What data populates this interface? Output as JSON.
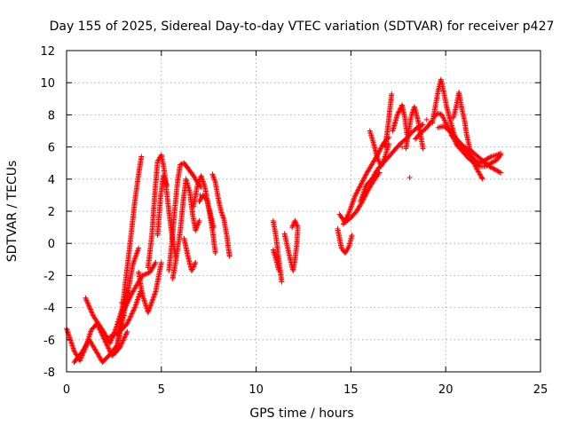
{
  "chart_data": {
    "type": "scatter",
    "title": "Day 155 of 2025, Sidereal Day-to-day VTEC variation (SDTVAR) for receiver p427",
    "xlabel": "GPS time / hours",
    "ylabel": "SDTVAR / TECUs",
    "xlim": [
      0,
      25
    ],
    "ylim": [
      -8,
      12
    ],
    "xticks": [
      "0",
      "5",
      "10",
      "15",
      "20",
      "25"
    ],
    "yticks": [
      "-8",
      "-6",
      "-4",
      "-2",
      "0",
      "2",
      "4",
      "6",
      "8",
      "10",
      "12"
    ],
    "grid": true,
    "marker": "+",
    "series": [
      {
        "name": "SDTVAR",
        "color": "#ff0000",
        "tracks": [
          [
            [
              0.0,
              -5.3
            ],
            [
              0.4,
              -6.7
            ],
            [
              0.7,
              -7.3
            ],
            [
              1.0,
              -6.5
            ],
            [
              1.3,
              -5.4
            ],
            [
              1.6,
              -5.0
            ],
            [
              2.0,
              -6.0
            ],
            [
              2.4,
              -7.0
            ],
            [
              2.8,
              -6.5
            ],
            [
              3.2,
              -5.5
            ]
          ],
          [
            [
              0.4,
              -7.4
            ],
            [
              0.8,
              -6.8
            ],
            [
              1.2,
              -6.0
            ],
            [
              1.6,
              -6.8
            ],
            [
              1.9,
              -7.4
            ],
            [
              2.3,
              -6.9
            ],
            [
              2.7,
              -6.3
            ]
          ],
          [
            [
              1.0,
              -3.4
            ],
            [
              1.4,
              -4.5
            ],
            [
              1.9,
              -5.4
            ],
            [
              2.3,
              -6.2
            ],
            [
              2.6,
              -5.3
            ],
            [
              2.9,
              -4.2
            ],
            [
              3.2,
              -3.3
            ]
          ],
          [
            [
              2.6,
              -6.8
            ],
            [
              2.8,
              -5.5
            ],
            [
              3.0,
              -3.5
            ],
            [
              3.2,
              -1.5
            ],
            [
              3.4,
              0.5
            ],
            [
              3.6,
              2.6
            ],
            [
              3.8,
              4.3
            ],
            [
              3.95,
              5.4
            ]
          ],
          [
            [
              2.3,
              -5.8
            ],
            [
              2.7,
              -5.6
            ],
            [
              3.2,
              -5.0
            ],
            [
              3.6,
              -4.0
            ],
            [
              3.9,
              -3.0
            ]
          ],
          [
            [
              2.7,
              -6.2
            ],
            [
              3.0,
              -4.5
            ],
            [
              3.3,
              -2.6
            ],
            [
              3.5,
              -1.3
            ],
            [
              3.8,
              -0.3
            ]
          ],
          [
            [
              3.0,
              -4.2
            ],
            [
              3.5,
              -3.0
            ],
            [
              4.0,
              -2.0
            ],
            [
              4.4,
              -1.8
            ],
            [
              4.7,
              -1.2
            ]
          ],
          [
            [
              3.8,
              -1.8
            ],
            [
              4.0,
              -3.2
            ],
            [
              4.3,
              -4.3
            ],
            [
              4.7,
              -3.0
            ],
            [
              5.0,
              -1.2
            ]
          ],
          [
            [
              4.3,
              -1.5
            ],
            [
              4.5,
              0.5
            ],
            [
              4.65,
              3.0
            ],
            [
              4.8,
              5.1
            ],
            [
              5.0,
              5.5
            ],
            [
              5.15,
              4.6
            ],
            [
              5.3,
              3.0
            ],
            [
              5.45,
              1.5
            ],
            [
              5.6,
              0.2
            ],
            [
              5.75,
              -0.8
            ]
          ],
          [
            [
              4.8,
              0.5
            ],
            [
              4.95,
              2.8
            ],
            [
              5.1,
              4.2
            ],
            [
              5.3,
              3.6
            ]
          ],
          [
            [
              5.4,
              -1.7
            ],
            [
              5.55,
              0.0
            ],
            [
              5.7,
              2.0
            ],
            [
              5.85,
              3.8
            ],
            [
              6.0,
              4.9
            ],
            [
              6.2,
              5.0
            ],
            [
              6.45,
              4.6
            ],
            [
              6.7,
              4.2
            ],
            [
              6.9,
              3.8
            ],
            [
              7.1,
              3.5
            ]
          ],
          [
            [
              5.6,
              -2.2
            ],
            [
              5.8,
              -0.8
            ],
            [
              6.0,
              0.8
            ],
            [
              6.15,
              2.6
            ],
            [
              6.3,
              4.0
            ],
            [
              6.5,
              3.2
            ],
            [
              6.65,
              1.8
            ],
            [
              6.8,
              0.8
            ],
            [
              7.0,
              1.4
            ]
          ],
          [
            [
              6.2,
              0.3
            ],
            [
              6.4,
              -0.8
            ],
            [
              6.6,
              -1.7
            ],
            [
              6.8,
              -1.2
            ]
          ],
          [
            [
              6.7,
              2.3
            ],
            [
              6.9,
              3.6
            ],
            [
              7.1,
              4.2
            ],
            [
              7.3,
              3.5
            ],
            [
              7.5,
              2.2
            ],
            [
              7.7,
              0.8
            ],
            [
              7.85,
              -0.6
            ]
          ],
          [
            [
              7.0,
              2.6
            ],
            [
              7.2,
              3.0
            ],
            [
              7.4,
              2.7
            ],
            [
              7.6,
              1.8
            ],
            [
              7.75,
              1.0
            ]
          ],
          [
            [
              7.7,
              4.3
            ],
            [
              7.85,
              3.8
            ],
            [
              8.0,
              2.8
            ],
            [
              8.15,
              2.0
            ],
            [
              8.3,
              1.5
            ],
            [
              8.45,
              0.5
            ],
            [
              8.55,
              -0.4
            ],
            [
              8.6,
              -0.8
            ]
          ],
          [
            [
              10.9,
              1.4
            ],
            [
              11.05,
              0.4
            ],
            [
              11.15,
              -0.6
            ],
            [
              11.25,
              -1.5
            ],
            [
              11.35,
              -2.4
            ]
          ],
          [
            [
              10.9,
              -0.4
            ],
            [
              11.05,
              -1.0
            ],
            [
              11.2,
              -1.7
            ]
          ],
          [
            [
              11.5,
              0.6
            ],
            [
              11.65,
              -0.2
            ],
            [
              11.8,
              -1.0
            ],
            [
              11.95,
              -1.7
            ],
            [
              12.05,
              -1.0
            ],
            [
              12.15,
              0.0
            ],
            [
              12.2,
              1.0
            ],
            [
              12.05,
              1.4
            ],
            [
              11.9,
              1.0
            ]
          ],
          [
            [
              14.3,
              0.9
            ],
            [
              14.5,
              -0.3
            ],
            [
              14.7,
              -0.6
            ],
            [
              14.9,
              -0.2
            ],
            [
              15.05,
              0.5
            ]
          ],
          [
            [
              14.4,
              1.8
            ],
            [
              14.7,
              1.3
            ],
            [
              15.0,
              1.6
            ],
            [
              15.3,
              2.0
            ],
            [
              15.6,
              2.6
            ],
            [
              15.9,
              3.3
            ],
            [
              16.2,
              3.9
            ],
            [
              16.5,
              4.4
            ]
          ],
          [
            [
              14.6,
              1.2
            ],
            [
              14.9,
              1.9
            ],
            [
              15.2,
              2.9
            ],
            [
              15.5,
              3.6
            ],
            [
              15.8,
              4.3
            ],
            [
              16.1,
              4.9
            ],
            [
              16.4,
              5.5
            ],
            [
              16.7,
              6.2
            ],
            [
              17.0,
              6.6
            ]
          ],
          [
            [
              15.5,
              2.6
            ],
            [
              15.8,
              3.6
            ],
            [
              16.1,
              4.0
            ],
            [
              16.4,
              4.6
            ],
            [
              16.7,
              5.0
            ],
            [
              17.0,
              5.4
            ],
            [
              17.3,
              5.8
            ],
            [
              17.6,
              6.2
            ],
            [
              17.9,
              6.5
            ],
            [
              18.2,
              6.9
            ],
            [
              18.5,
              7.2
            ],
            [
              18.8,
              7.4
            ]
          ],
          [
            [
              16.0,
              7.0
            ],
            [
              16.2,
              6.2
            ],
            [
              16.4,
              5.3
            ],
            [
              16.6,
              4.8
            ],
            [
              16.8,
              5.4
            ],
            [
              17.0,
              6.2
            ]
          ],
          [
            [
              16.8,
              6.0
            ],
            [
              16.95,
              7.2
            ],
            [
              17.05,
              8.3
            ],
            [
              17.15,
              9.3
            ]
          ],
          [
            [
              17.2,
              7.0
            ],
            [
              17.45,
              8.0
            ],
            [
              17.7,
              8.6
            ],
            [
              17.85,
              7.8
            ],
            [
              17.95,
              6.8
            ]
          ],
          [
            [
              17.9,
              5.9
            ],
            [
              18.05,
              7.0
            ],
            [
              18.2,
              8.0
            ],
            [
              18.35,
              8.5
            ],
            [
              18.55,
              7.6
            ],
            [
              18.7,
              6.6
            ],
            [
              18.8,
              5.9
            ]
          ],
          [
            [
              18.4,
              6.5
            ],
            [
              18.7,
              6.9
            ],
            [
              19.0,
              7.2
            ],
            [
              19.25,
              7.6
            ]
          ],
          [
            [
              19.3,
              7.5
            ],
            [
              19.45,
              8.5
            ],
            [
              19.6,
              9.5
            ],
            [
              19.75,
              10.2
            ],
            [
              19.9,
              9.4
            ],
            [
              20.05,
              8.5
            ],
            [
              20.25,
              7.6
            ],
            [
              20.45,
              6.8
            ],
            [
              20.65,
              6.1
            ]
          ],
          [
            [
              19.4,
              7.9
            ],
            [
              19.6,
              8.1
            ],
            [
              19.8,
              8.0
            ],
            [
              20.0,
              7.5
            ],
            [
              20.3,
              6.8
            ],
            [
              20.6,
              6.1
            ],
            [
              20.9,
              5.7
            ],
            [
              21.2,
              5.3
            ],
            [
              21.5,
              5.0
            ],
            [
              21.8,
              4.8
            ],
            [
              22.1,
              4.8
            ],
            [
              22.4,
              5.0
            ],
            [
              22.7,
              5.2
            ],
            [
              22.9,
              5.5
            ]
          ],
          [
            [
              19.6,
              7.2
            ],
            [
              19.9,
              7.3
            ],
            [
              20.2,
              7.0
            ],
            [
              20.5,
              6.6
            ],
            [
              20.8,
              6.2
            ],
            [
              21.1,
              5.9
            ],
            [
              21.4,
              5.7
            ],
            [
              21.7,
              5.4
            ],
            [
              22.0,
              5.1
            ],
            [
              22.3,
              4.8
            ],
            [
              22.6,
              4.6
            ],
            [
              22.9,
              4.4
            ]
          ],
          [
            [
              20.4,
              7.8
            ],
            [
              20.55,
              8.5
            ],
            [
              20.7,
              9.4
            ],
            [
              20.85,
              8.4
            ],
            [
              21.0,
              7.6
            ],
            [
              21.1,
              6.8
            ],
            [
              21.25,
              6.0
            ],
            [
              21.4,
              5.3
            ],
            [
              21.6,
              4.7
            ],
            [
              21.8,
              4.3
            ],
            [
              21.95,
              4.0
            ]
          ],
          [
            [
              20.3,
              6.7
            ],
            [
              20.6,
              6.4
            ],
            [
              20.9,
              5.9
            ],
            [
              21.2,
              5.6
            ],
            [
              21.5,
              5.2
            ],
            [
              21.8,
              5.0
            ],
            [
              22.1,
              5.2
            ],
            [
              22.4,
              5.4
            ],
            [
              22.7,
              5.5
            ],
            [
              22.9,
              5.6
            ]
          ]
        ],
        "points": [
          [
            2.9,
            -3.7
          ],
          [
            3.3,
            -3.1
          ],
          [
            3.05,
            -4.5
          ],
          [
            4.4,
            -1.6
          ],
          [
            7.05,
            3.0
          ],
          [
            18.1,
            4.1
          ],
          [
            17.7,
            6.0
          ],
          [
            19.0,
            7.7
          ]
        ]
      }
    ]
  }
}
